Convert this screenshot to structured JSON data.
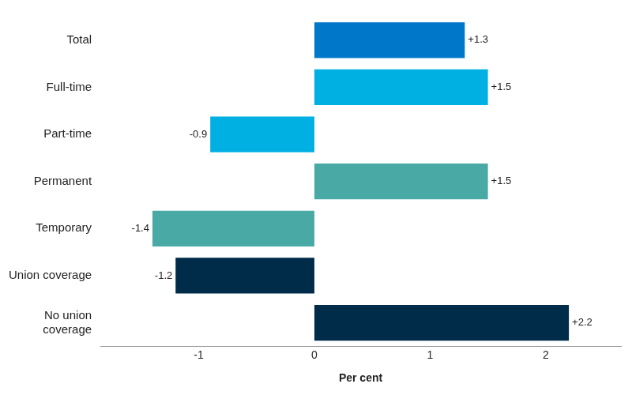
{
  "chart_data": {
    "type": "bar",
    "orientation": "horizontal",
    "x_label": "Per cent",
    "categories": [
      "Total",
      "Full-time",
      "Part-time",
      "Permanent",
      "Temporary",
      "Union coverage",
      "No union coverage"
    ],
    "values": [
      1.3,
      1.5,
      -0.9,
      1.5,
      -1.4,
      -1.2,
      2.2
    ],
    "value_labels": [
      "+1.3",
      "+1.5",
      "-0.9",
      "+1.5",
      "-1.4",
      "-1.2",
      "+2.2"
    ],
    "colors": [
      "#0077c8",
      "#00b0e3",
      "#00b0e3",
      "#48a9a5",
      "#48a9a5",
      "#002c4a",
      "#002c4a"
    ],
    "xlim": [
      -1.85,
      2.65
    ],
    "xticks": [
      -1,
      0,
      1,
      2
    ],
    "grid": false,
    "data_labels": true
  }
}
